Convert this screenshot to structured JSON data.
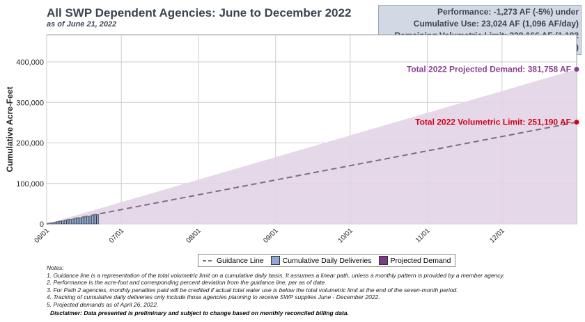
{
  "header": {
    "title": "All SWP Dependent Agencies: June to December 2022",
    "subtitle": "as of June 21, 2022"
  },
  "stats": [
    "Performance: -1,273 AF (-5%) under",
    "Cumulative Use: 23,024 AF (1,096 AF/day)",
    "Remaining Volumetric Limit: 228,166 AF (1,182 AF/day)"
  ],
  "chart_data": {
    "type": "bar",
    "title": "All SWP Dependent Agencies: June to December 2022",
    "ylabel": "Cumulative Acre-Feet",
    "ylim": [
      0,
      460000
    ],
    "yticks": [
      0,
      100000,
      200000,
      300000,
      400000
    ],
    "ytick_labels": [
      "0",
      "100,000",
      "200,000",
      "300,000",
      "400,000"
    ],
    "xtick_labels": [
      "06/01",
      "07/01",
      "08/01",
      "09/01",
      "10/01",
      "11/01",
      "12/01"
    ],
    "xtick_days": [
      0,
      30,
      61,
      92,
      122,
      153,
      183
    ],
    "total_days": 213,
    "series": [
      {
        "name": "Cumulative Daily Deliveries",
        "color": "#8fa9d6",
        "days": [
          1,
          2,
          3,
          4,
          5,
          6,
          7,
          8,
          9,
          10,
          11,
          12,
          13,
          14,
          15,
          16,
          17,
          18,
          19,
          20,
          21
        ],
        "values": [
          1096,
          2192,
          3288,
          4385,
          5481,
          6577,
          7674,
          8770,
          9866,
          10963,
          12059,
          13155,
          14252,
          15348,
          16444,
          17540,
          18637,
          19733,
          20829,
          21926,
          23024
        ]
      },
      {
        "name": "Guidance Line",
        "start": 0,
        "end": 251190,
        "color": "#7a6e80"
      },
      {
        "name": "Projected Demand",
        "start": 0,
        "end": 381758,
        "color": "#e2d4e5"
      }
    ],
    "annotations": [
      {
        "text": "Total 2022 Projected Demand: 381,758 AF",
        "value": 381758,
        "color": "#8a3f91"
      },
      {
        "text": "Total 2022 Volumetric Limit: 251,190 AF",
        "value": 251190,
        "color": "#d0021b"
      }
    ],
    "legend": [
      "Guidance Line",
      "Cumulative Daily Deliveries",
      "Projected Demand"
    ],
    "legend_position": "bottom"
  },
  "notes": [
    "Notes:",
    "1. Guidance line is a representation of the total volumetric limit on a cumulative daily basis. It assumes a linear path, unless a monthly pattern is provided by a member agency.",
    "2. Performance is the acre-foot and corresponding percent deviation from the guidance line, per as of date.",
    "3. For Path 2 agencies, monthly penalties paid will be credited if actual total water use is below the total volumetric limit at the end of the seven-month period.",
    "4. Tracking of cumulative daily deliveries only include those agencies planning to receive SWP supplies June - December 2022.",
    "5. Projected demands as of April 26, 2022."
  ],
  "disclaimer": "Disclaimer: Data presented is preliminary and subject to change based on monthly reconciled billing data."
}
